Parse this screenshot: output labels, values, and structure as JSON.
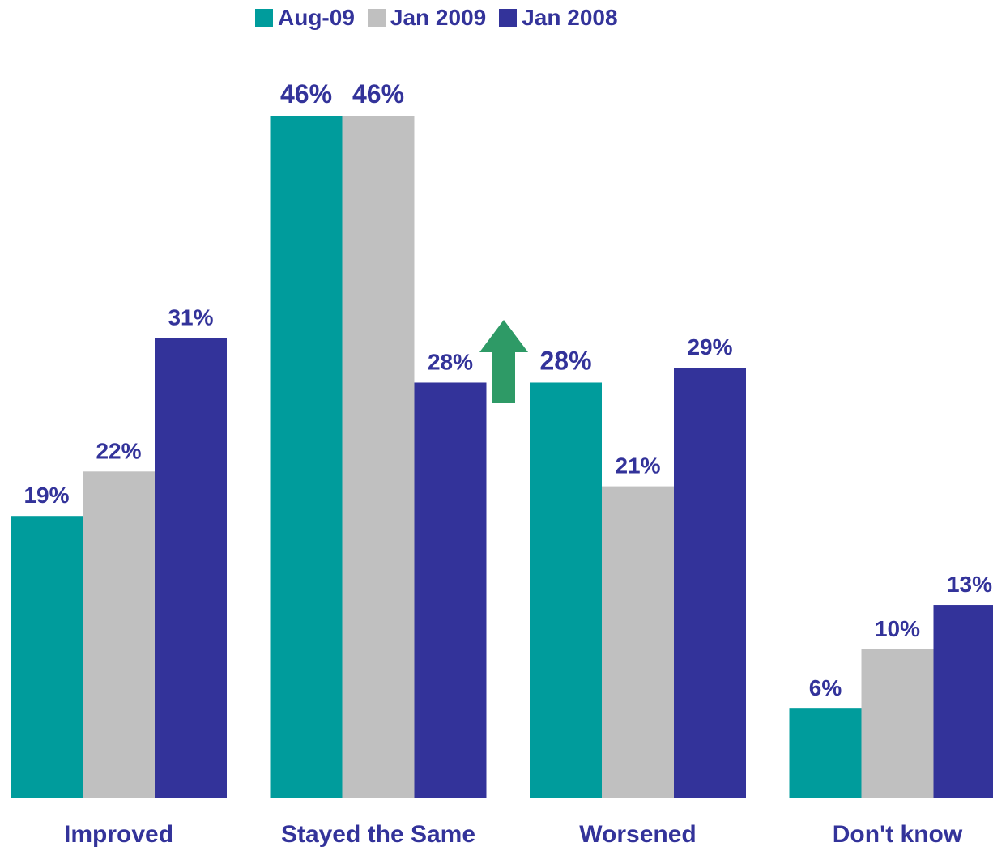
{
  "chart_data": {
    "type": "bar",
    "categories": [
      "Improved",
      "Stayed the Same",
      "Worsened",
      "Don't know"
    ],
    "series": [
      {
        "name": "Aug-09",
        "color": "#009C9C",
        "values": [
          19,
          46,
          28,
          6
        ],
        "labels": [
          "19%",
          "46%",
          "28%",
          "6%"
        ]
      },
      {
        "name": "Jan 2009",
        "color": "#C0C0C0",
        "values": [
          22,
          46,
          21,
          10
        ],
        "labels": [
          "22%",
          "46%",
          "21%",
          "10%"
        ]
      },
      {
        "name": "Jan 2008",
        "color": "#33339A",
        "values": [
          31,
          28,
          29,
          13
        ],
        "labels": [
          "31%",
          "28%",
          "29%",
          "13%"
        ]
      }
    ],
    "ylim": [
      0,
      46
    ],
    "grid": false,
    "legend_position": "top-center",
    "label_color": "#33339A",
    "annotation": {
      "shape": "up-arrow",
      "color": "#2E9A66",
      "between": [
        "Stayed the Same",
        "Worsened"
      ]
    }
  }
}
